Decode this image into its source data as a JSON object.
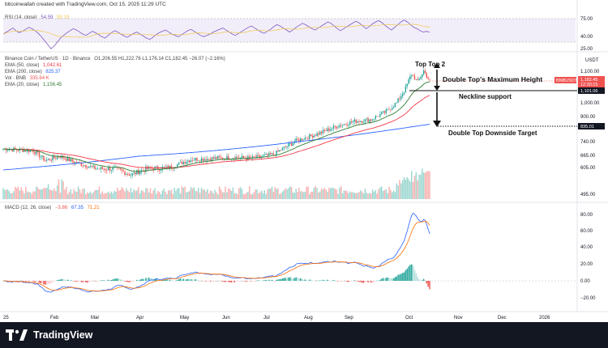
{
  "header": {
    "created": "bitcoinwallah created with TradingView.com, Oct 15, 2025 11:29 UTC"
  },
  "rsi": {
    "label": "RSI (14, close)",
    "v1": "54.59",
    "v2": "59.19",
    "ticks": [
      "75.00",
      "40.00",
      "25.00"
    ],
    "values": [
      52,
      55,
      58,
      61,
      57,
      54,
      56,
      59,
      62,
      60,
      57,
      53,
      48,
      42,
      36,
      30,
      34,
      40,
      46,
      50,
      54,
      57,
      60,
      58,
      55,
      52,
      50,
      53,
      56,
      54,
      51,
      48,
      46,
      50,
      54,
      57,
      55,
      52,
      49,
      47,
      50,
      53,
      55,
      52,
      49,
      46,
      44,
      47,
      51,
      54,
      56,
      58,
      55,
      52,
      50,
      48,
      51,
      54,
      57,
      59,
      56,
      53,
      50,
      48,
      50,
      52,
      55,
      57,
      59,
      61,
      58,
      55,
      52,
      50,
      53,
      56,
      59,
      62,
      64,
      61,
      58,
      55,
      53,
      56,
      59,
      63,
      66,
      64,
      61,
      58,
      55,
      58,
      62,
      65,
      68,
      66,
      63,
      60,
      58,
      61,
      64,
      67,
      70,
      68,
      64,
      60,
      57,
      60,
      63,
      66,
      69,
      71,
      68,
      64,
      60,
      63,
      67,
      70,
      72,
      69,
      65,
      61,
      58,
      62,
      66,
      70,
      73,
      70,
      66,
      62,
      60,
      57,
      55,
      56,
      54.59
    ]
  },
  "price": {
    "title": "Binance Coin / TetherUS · 1D · Binance",
    "ohlc": "O1,206.55 H1,222.76 L1,176.14 C1,182.45 −26.07 (−2.16%)",
    "ema50_label": "EMA (50, close)",
    "ema50_value": "1,042.61",
    "ema200_label": "EMA (200, close)",
    "ema200_value": "825.37",
    "vol_label": "Vol · BNB",
    "vol_value": "335.64 K",
    "ema20_label": "EMA (20, close)",
    "ema20_value": "1,156.45",
    "currency": "USDT",
    "ticks": [
      "1,100.00",
      "1,000.00",
      "900.00",
      "740.00",
      "665.00",
      "605.00",
      "495.00"
    ],
    "symbol_tag": "BNBUSDT",
    "last_price": "1,182.45",
    "countdown": "12:30:15",
    "neck_price": "1,101.06",
    "target_price": "835.01"
  },
  "macd": {
    "label": "MACD (12, 26, close)",
    "v1": "−3.86",
    "v2": "67.35",
    "v3": "71.21",
    "ticks": [
      "80.00",
      "60.00",
      "40.00",
      "20.00",
      "0.00",
      "−20.00"
    ]
  },
  "xaxis": [
    "25",
    "Feb",
    "Mar",
    "Apr",
    "May",
    "Jun",
    "Jul",
    "Aug",
    "Sep",
    "Oct",
    "Nov",
    "Dec",
    "2026"
  ],
  "annotations": {
    "top": "Top Top 2",
    "max_height": "Double Top's Maximum Height",
    "neckline": "Neckline support",
    "target": "Double Top Downside Target"
  },
  "footer": {
    "brand": "TradingView"
  },
  "colors": {
    "up": "#26a69a",
    "down": "#ef5350",
    "ema50": "#f23645",
    "ema200": "#2962ff",
    "ema20": "#2e7d32",
    "rsi": "#7e57c2",
    "macd": "#2962ff",
    "signal": "#ff6d00"
  }
}
